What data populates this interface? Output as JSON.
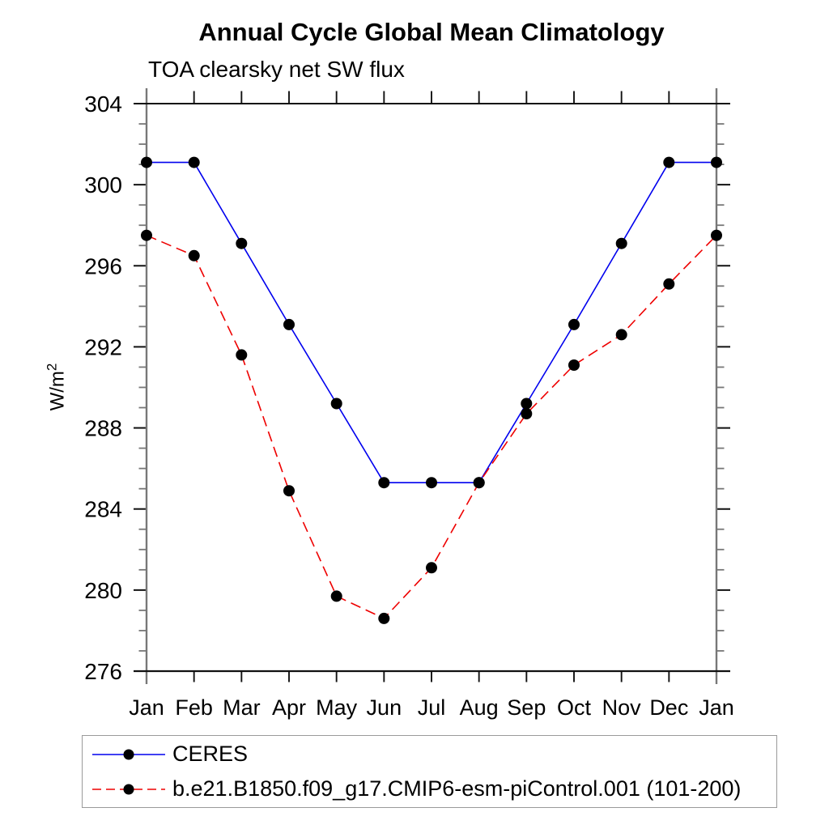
{
  "title": "Annual Cycle Global Mean Climatology",
  "chart_data": {
    "type": "line",
    "title": "Annual Cycle Global Mean Climatology",
    "subtitle": "TOA clearsky net SW flux",
    "ylabel": "W/m²",
    "ylabel_base": "W/m",
    "ylabel_sup": "2",
    "xlabel": "",
    "categories": [
      "Jan",
      "Feb",
      "Mar",
      "Apr",
      "May",
      "Jun",
      "Jul",
      "Aug",
      "Sep",
      "Oct",
      "Nov",
      "Dec",
      "Jan"
    ],
    "ylim": [
      276,
      304
    ],
    "ytick_major_step": 4,
    "ytick_minor_step": 1,
    "ytick_major_labels": [
      "276",
      "280",
      "284",
      "288",
      "292",
      "296",
      "300",
      "304"
    ],
    "grid": false,
    "legend_position": "bottom-left",
    "series": [
      {
        "name": "CERES",
        "color": "#0000ee",
        "line_style": "solid",
        "marker": "filled-circle",
        "marker_color": "#000000",
        "values": [
          301.1,
          301.1,
          297.1,
          293.1,
          289.2,
          285.3,
          285.3,
          285.3,
          289.2,
          293.1,
          297.1,
          301.1,
          301.1
        ]
      },
      {
        "name": "b.e21.B1850.f09_g17.CMIP6-esm-piControl.001 (101-200)",
        "color": "#ee0000",
        "line_style": "dashed",
        "marker": "filled-circle",
        "marker_color": "#000000",
        "values": [
          297.5,
          296.5,
          291.6,
          284.9,
          279.7,
          278.6,
          281.1,
          285.3,
          288.7,
          291.1,
          292.6,
          295.1,
          297.5
        ]
      }
    ],
    "axis_colors": {
      "spine": "#777777",
      "frame": "#111111",
      "major_tick": "#111111",
      "minor_tick": "#777777"
    }
  }
}
